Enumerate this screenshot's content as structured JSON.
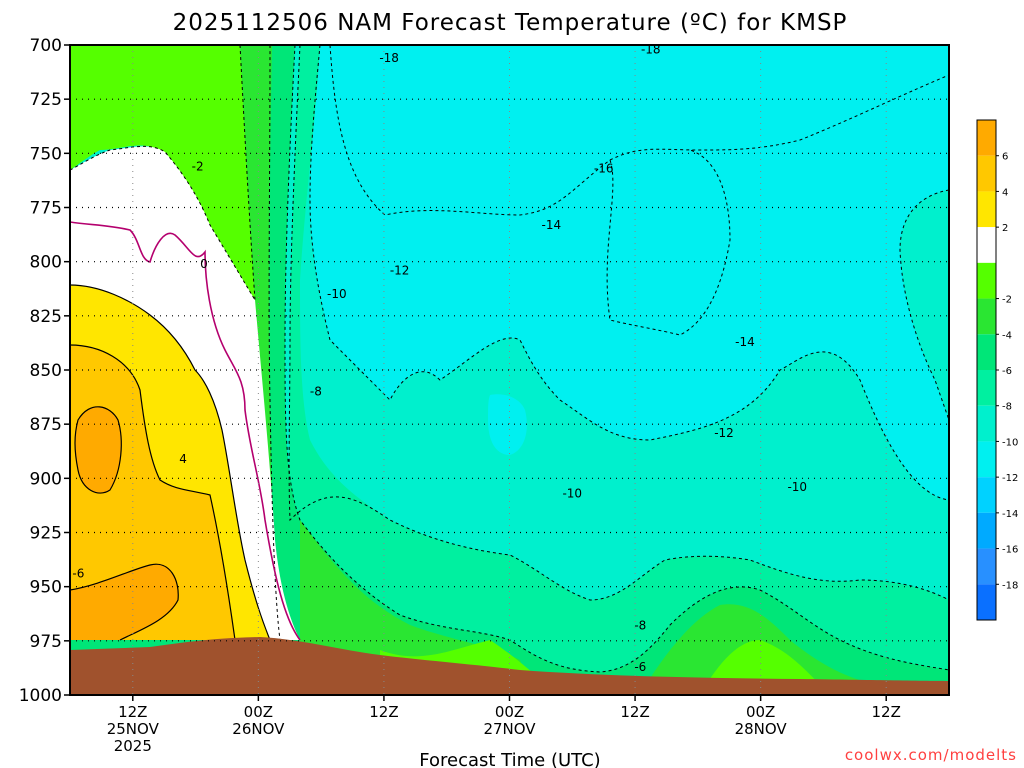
{
  "chart_data": {
    "type": "contour",
    "title": "2025112506 NAM Forecast Temperature (ºC) for KMSP",
    "xlabel": "Forecast Time (UTC)",
    "ylabel": "",
    "y_axis": {
      "quantity": "pressure (hPa)",
      "ticks": [
        "700",
        "725",
        "750",
        "775",
        "800",
        "825",
        "850",
        "875",
        "900",
        "925",
        "950",
        "975",
        "1000"
      ],
      "range": [
        700,
        1000
      ],
      "inverted": true
    },
    "x_axis": {
      "ticks": [
        {
          "h": 6,
          "l1": "12Z",
          "l2": "25NOV",
          "l3": "2025"
        },
        {
          "h": 18,
          "l1": "00Z",
          "l2": "26NOV",
          "l3": ""
        },
        {
          "h": 30,
          "l1": "12Z",
          "l2": "",
          "l3": ""
        },
        {
          "h": 42,
          "l1": "00Z",
          "l2": "27NOV",
          "l3": ""
        },
        {
          "h": 54,
          "l1": "12Z",
          "l2": "",
          "l3": ""
        },
        {
          "h": 66,
          "l1": "00Z",
          "l2": "28NOV",
          "l3": ""
        },
        {
          "h": 78,
          "l1": "12Z",
          "l2": "",
          "l3": ""
        }
      ],
      "range_hours": [
        0,
        84
      ]
    },
    "colorbar": {
      "ticks": [
        "6",
        "4",
        "2",
        "-2",
        "-4",
        "-6",
        "-8",
        "-10",
        "-12",
        "-14",
        "-16",
        "-18"
      ],
      "bands": [
        {
          "c": "#ffaa00"
        },
        {
          "c": "#ffc800"
        },
        {
          "c": "#ffe600"
        },
        {
          "c": "#ffffff"
        },
        {
          "c": "#55ff00"
        },
        {
          "c": "#2ae632"
        },
        {
          "c": "#00e678"
        },
        {
          "c": "#00f0a0"
        },
        {
          "c": "#00f0cd"
        },
        {
          "c": "#00f0f0"
        },
        {
          "c": "#00d2ff"
        },
        {
          "c": "#00aaff"
        },
        {
          "c": "#2890ff"
        },
        {
          "c": "#0a70ff"
        }
      ]
    },
    "contour_labels": [
      {
        "text": "-18",
        "p": 706,
        "h": 30.5
      },
      {
        "text": "-18",
        "p": 702,
        "h": 55.5
      },
      {
        "text": "-16",
        "p": 757,
        "h": 51.0
      },
      {
        "text": "-14",
        "p": 783,
        "h": 46.0
      },
      {
        "text": "-14",
        "p": 837,
        "h": 64.5
      },
      {
        "text": "-12",
        "p": 804,
        "h": 31.5
      },
      {
        "text": "-12",
        "p": 879,
        "h": 62.5
      },
      {
        "text": "-10",
        "p": 815,
        "h": 25.5
      },
      {
        "text": "-10",
        "p": 907,
        "h": 48.0
      },
      {
        "text": "-10",
        "p": 904,
        "h": 69.5
      },
      {
        "text": "-8",
        "p": 860,
        "h": 23.5
      },
      {
        "text": "-8",
        "p": 968,
        "h": 54.5
      },
      {
        "text": "-6",
        "p": 987,
        "h": 54.5
      },
      {
        "text": "-2",
        "p": 756,
        "h": 12.2
      },
      {
        "text": "0",
        "p": 801,
        "h": 12.8
      },
      {
        "text": "4",
        "p": 891,
        "h": 10.8
      },
      {
        "text": "-6",
        "p": 944,
        "h": 0.8
      }
    ],
    "notes": "Time-pressure cross section; warm yellow/orange near surface early, cold blue aloft later; brown area below ground."
  },
  "credit": "coolwx.com/modelts"
}
